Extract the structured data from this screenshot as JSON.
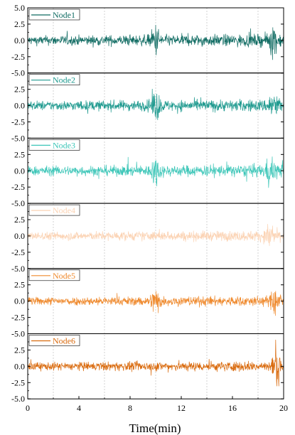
{
  "chart_data": {
    "type": "line",
    "xlabel": "Time(min)",
    "xlim": [
      0,
      20
    ],
    "ylim": [
      -5.0,
      5.0
    ],
    "x_ticks": [
      0,
      4,
      8,
      12,
      16,
      20
    ],
    "x_tick_labels": [
      "0",
      "4",
      "8",
      "12",
      "16",
      "20"
    ],
    "x_minor_gridlines": [
      2,
      6,
      10,
      14,
      18
    ],
    "y_tick_labels": [
      "5.0",
      "2.5",
      "0.0",
      "-2.5",
      "-5.0"
    ],
    "y_ticks": [
      5.0,
      2.5,
      0.0,
      -2.5,
      -5.0
    ],
    "legend_position": "top-left",
    "series": [
      {
        "name": "Node1",
        "color": "#0f6b62",
        "base_amplitude": 0.35,
        "burst_times": [
          10.0,
          19.2
        ],
        "burst_peak": 1.9
      },
      {
        "name": "Node2",
        "color": "#1f9a8f",
        "base_amplitude": 0.35,
        "burst_times": [
          10.0,
          19.2
        ],
        "burst_peak": 1.9
      },
      {
        "name": "Node3",
        "color": "#3cc6b8",
        "base_amplitude": 0.35,
        "burst_times": [
          10.0,
          19.0
        ],
        "burst_peak": 1.8
      },
      {
        "name": "Node4",
        "color": "#fbd3b4",
        "base_amplitude": 0.3,
        "burst_times": [
          19.0
        ],
        "burst_peak": 1.6
      },
      {
        "name": "Node5",
        "color": "#ef8a2e",
        "base_amplitude": 0.3,
        "burst_times": [
          10.0,
          19.4
        ],
        "burst_peak": 1.7
      },
      {
        "name": "Node6",
        "color": "#d96a0d",
        "base_amplitude": 0.3,
        "burst_times": [
          19.5
        ],
        "burst_peak": 2.0
      }
    ]
  }
}
